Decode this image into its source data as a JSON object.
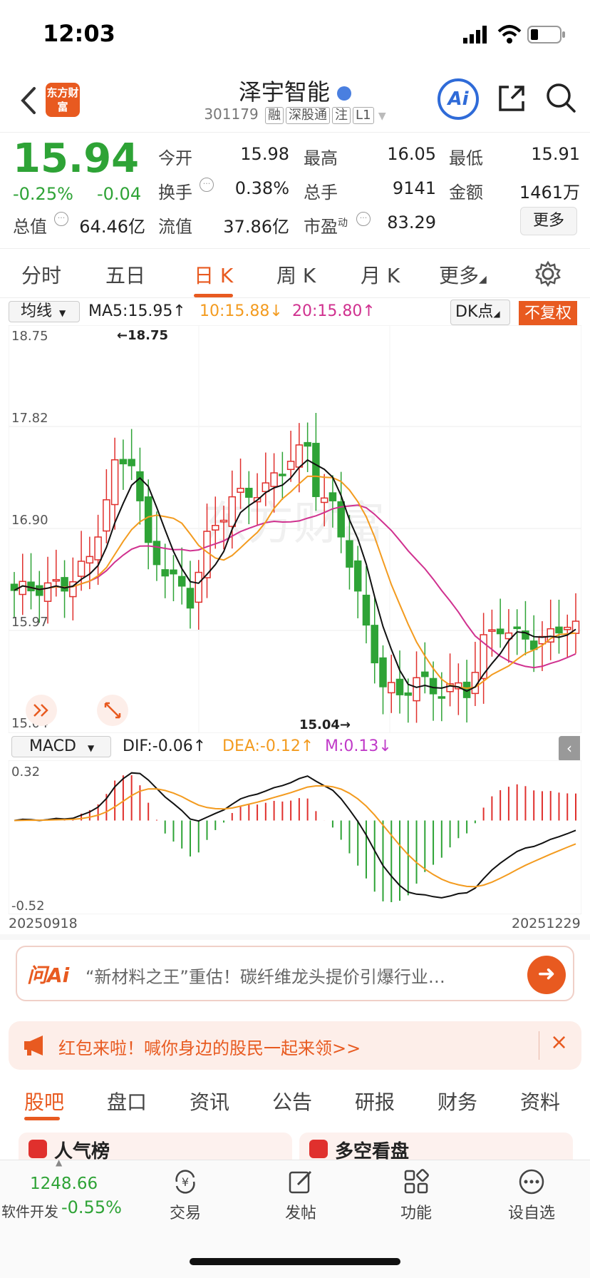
{
  "status": {
    "time": "12:03"
  },
  "header": {
    "logo_text": "东方财富",
    "stock_name": "泽宇智能",
    "stock_code": "301179",
    "tags": [
      "融",
      "深股通",
      "注",
      "L1"
    ],
    "ai_label": "Ai"
  },
  "quote": {
    "price": "15.94",
    "change_pct": "-0.25%",
    "change_amt": "-0.04",
    "open_label": "今开",
    "open": "15.98",
    "high_label": "最高",
    "high": "16.05",
    "low_label": "最低",
    "low": "15.91",
    "turnover_label": "换手",
    "turnover": "0.38%",
    "volume_label": "总手",
    "volume": "9141",
    "amount_label": "金额",
    "amount": "1461万",
    "mktcap_label": "总值",
    "mktcap": "64.46亿",
    "float_label": "流值",
    "float": "37.86亿",
    "pe_label": "市盈",
    "pe_sup": "动",
    "pe": "83.29",
    "more_label": "更多"
  },
  "period_tabs": [
    "分时",
    "五日",
    "日 K",
    "周 K",
    "月 K",
    "更多"
  ],
  "ma": {
    "select": "均线",
    "ma5": "MA5:15.95↑",
    "ma10": "10:15.88↓",
    "ma20": "20:15.80↑",
    "dk": "DK点",
    "fq": "不复权"
  },
  "kline": {
    "y_labels": [
      "18.75",
      "17.82",
      "16.90",
      "15.97",
      "15.04"
    ],
    "max_label": "←18.75",
    "min_label": "15.04→",
    "watermark": "东方财富"
  },
  "macd": {
    "select": "MACD",
    "dif": "DIF:-0.06↑",
    "dea": "DEA:-0.12↑",
    "m": "M:0.13↓",
    "y_top": "0.32",
    "y_bottom": "-0.52",
    "date_start": "20250918",
    "date_end": "20251229"
  },
  "ai_bar": {
    "brand": "问Ai",
    "text": "“新材料之王”重估！碳纤维龙头提价引爆行业…"
  },
  "notice": {
    "text": "红包来啦！喊你身边的股民一起来领>>"
  },
  "bottom_tabs": [
    "股吧",
    "盘口",
    "资讯",
    "公告",
    "研报",
    "财务",
    "资料"
  ],
  "partial_cards": [
    "人气榜",
    "多空看盘"
  ],
  "bottom_nav": {
    "index_value": "1248.66",
    "index_name": "软件开发",
    "index_change": "-0.55%",
    "items": [
      "交易",
      "发帖",
      "功能",
      "设自选"
    ]
  },
  "colors": {
    "accent": "#e85a20",
    "up": "#e0302d",
    "down": "#2ea336",
    "ma5": "#111111",
    "ma10": "#f39b1f",
    "ma20": "#d0318f"
  }
}
